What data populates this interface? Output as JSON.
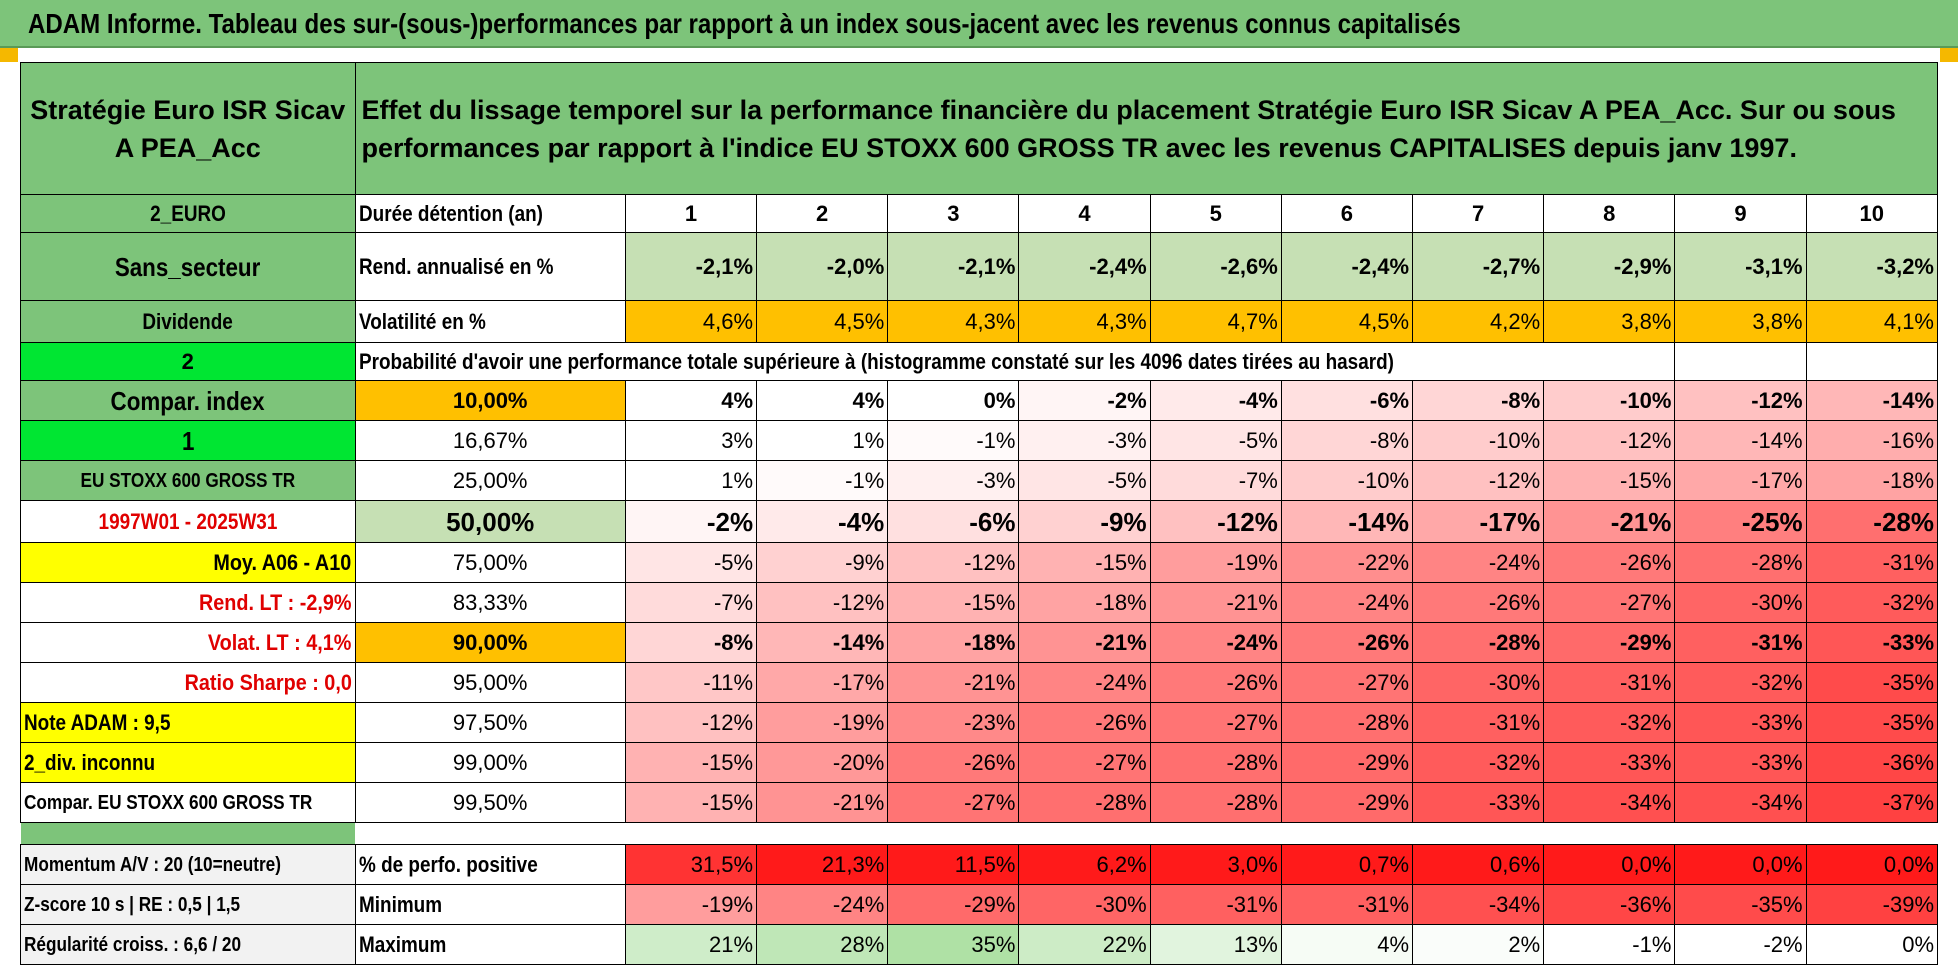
{
  "title": "ADAM Informe. Tableau des sur-(sous-)performances par rapport à un index sous-jacent avec les revenus connus capitalisés",
  "fund": {
    "name": "Stratégie Euro ISR Sicav A PEA_Acc",
    "description": "Effet du lissage temporel sur la performance financière du placement Stratégie Euro ISR Sicav A PEA_Acc. Sur ou sous performances par rapport à l'indice EU STOXX 600 GROSS TR avec les revenus CAPITALISES depuis janv 1997."
  },
  "side": {
    "currency": "2_EURO",
    "sector": "Sans_secteur",
    "dividend": "Dividende",
    "mode": "2",
    "compar_index": "Compar. index",
    "flag": "1",
    "index_name": "EU STOXX 600 GROSS TR",
    "period": "1997W01 - 2025W31",
    "moy": "Moy. A06 - A10",
    "rend_lt": "Rend. LT :    -2,9%",
    "volat_lt": "Volat. LT :    4,1%",
    "sharpe": "Ratio Sharpe :    0,0",
    "note": "Note ADAM : 9,5",
    "div": "2_div. inconnu",
    "compar": "Compar. EU STOXX 600 GROSS TR",
    "momentum": "Momentum A/V : 20 (10=neutre)",
    "zscore": "Z-score 10 s | RE : 0,5 | 1,5",
    "regularite": "Régularité croiss. : 6,6 / 20"
  },
  "labels": {
    "duree": "Durée détention (an)",
    "rend": "Rend. annualisé en %",
    "volat": "Volatilité en %",
    "proba": "Probabilité d'avoir une performance totale supérieure à (histogramme constaté sur les 4096 dates tirées au hasard)",
    "pct_pos": "% de perfo. positive",
    "min": "Minimum",
    "max": "Maximum"
  },
  "years": [
    "1",
    "2",
    "3",
    "4",
    "5",
    "6",
    "7",
    "8",
    "9",
    "10"
  ],
  "rend": [
    "-2,1%",
    "-2,0%",
    "-2,1%",
    "-2,4%",
    "-2,6%",
    "-2,4%",
    "-2,7%",
    "-2,9%",
    "-3,1%",
    "-3,2%"
  ],
  "volat": [
    "4,6%",
    "4,5%",
    "4,3%",
    "4,3%",
    "4,7%",
    "4,5%",
    "4,2%",
    "3,8%",
    "3,8%",
    "4,1%"
  ],
  "quantiles": [
    {
      "q": "10,00%",
      "v": [
        "4%",
        "4%",
        "0%",
        "-2%",
        "-4%",
        "-6%",
        "-8%",
        "-10%",
        "-12%",
        "-14%"
      ]
    },
    {
      "q": "16,67%",
      "v": [
        "3%",
        "1%",
        "-1%",
        "-3%",
        "-5%",
        "-8%",
        "-10%",
        "-12%",
        "-14%",
        "-16%"
      ]
    },
    {
      "q": "25,00%",
      "v": [
        "1%",
        "-1%",
        "-3%",
        "-5%",
        "-7%",
        "-10%",
        "-12%",
        "-15%",
        "-17%",
        "-18%"
      ]
    },
    {
      "q": "50,00%",
      "v": [
        "-2%",
        "-4%",
        "-6%",
        "-9%",
        "-12%",
        "-14%",
        "-17%",
        "-21%",
        "-25%",
        "-28%"
      ]
    },
    {
      "q": "75,00%",
      "v": [
        "-5%",
        "-9%",
        "-12%",
        "-15%",
        "-19%",
        "-22%",
        "-24%",
        "-26%",
        "-28%",
        "-31%"
      ]
    },
    {
      "q": "83,33%",
      "v": [
        "-7%",
        "-12%",
        "-15%",
        "-18%",
        "-21%",
        "-24%",
        "-26%",
        "-27%",
        "-30%",
        "-32%"
      ]
    },
    {
      "q": "90,00%",
      "v": [
        "-8%",
        "-14%",
        "-18%",
        "-21%",
        "-24%",
        "-26%",
        "-28%",
        "-29%",
        "-31%",
        "-33%"
      ]
    },
    {
      "q": "95,00%",
      "v": [
        "-11%",
        "-17%",
        "-21%",
        "-24%",
        "-26%",
        "-27%",
        "-30%",
        "-31%",
        "-32%",
        "-35%"
      ]
    },
    {
      "q": "97,50%",
      "v": [
        "-12%",
        "-19%",
        "-23%",
        "-26%",
        "-27%",
        "-28%",
        "-31%",
        "-32%",
        "-33%",
        "-35%"
      ]
    },
    {
      "q": "99,00%",
      "v": [
        "-15%",
        "-20%",
        "-26%",
        "-27%",
        "-28%",
        "-29%",
        "-32%",
        "-33%",
        "-33%",
        "-36%"
      ]
    },
    {
      "q": "99,50%",
      "v": [
        "-15%",
        "-21%",
        "-27%",
        "-28%",
        "-28%",
        "-29%",
        "-33%",
        "-34%",
        "-34%",
        "-37%"
      ]
    }
  ],
  "pct_pos": [
    "31,5%",
    "21,3%",
    "11,5%",
    "6,2%",
    "3,0%",
    "0,7%",
    "0,6%",
    "0,0%",
    "0,0%",
    "0,0%"
  ],
  "minimum": [
    "-19%",
    "-24%",
    "-29%",
    "-30%",
    "-31%",
    "-31%",
    "-34%",
    "-36%",
    "-35%",
    "-39%"
  ],
  "maximum": [
    "21%",
    "28%",
    "35%",
    "22%",
    "13%",
    "4%",
    "2%",
    "-1%",
    "-2%",
    "0%"
  ],
  "colors": {
    "header_green": "#7dc47a",
    "light_green": "#c6e0b4",
    "bright_green": "#00e632",
    "yellow": "#ffff00",
    "orange": "#ffc000",
    "red": "#ff0000",
    "label_red": "#e00000"
  }
}
